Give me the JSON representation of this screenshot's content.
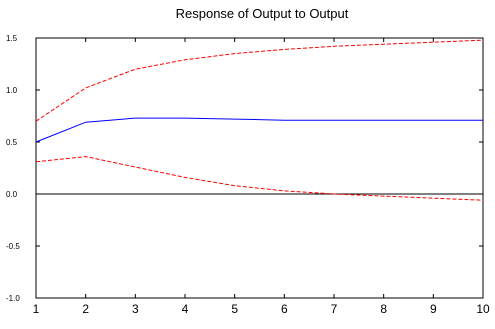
{
  "chart_data": {
    "type": "line",
    "title": "Response of Output to Output",
    "xlabel": "",
    "ylabel": "",
    "x": [
      1,
      2,
      3,
      4,
      5,
      6,
      7,
      8,
      9,
      10
    ],
    "xlim": [
      1,
      10
    ],
    "ylim": [
      -1.0,
      1.5
    ],
    "yticks": [
      -1.0,
      -0.5,
      0.0,
      0.5,
      1.0,
      1.5
    ],
    "ytick_labels": [
      "-1.0",
      "-0.5",
      "0.0",
      "0.5",
      "1.0",
      "1.5"
    ],
    "xtick_labels": [
      "1",
      "2",
      "3",
      "4",
      "5",
      "6",
      "7",
      "8",
      "9",
      "10"
    ],
    "grid": false,
    "legend": "none",
    "zero_line": {
      "value": 0.0,
      "color": "#000000"
    },
    "series": [
      {
        "values": [
          0.5,
          0.69,
          0.73,
          0.73,
          0.72,
          0.71,
          0.71,
          0.71,
          0.71,
          0.71
        ],
        "color": "#0000ff",
        "style": "solid"
      },
      {
        "values": [
          0.7,
          1.02,
          1.2,
          1.29,
          1.35,
          1.39,
          1.42,
          1.44,
          1.46,
          1.48
        ],
        "color": "#ff0000",
        "style": "dashed"
      },
      {
        "values": [
          0.31,
          0.36,
          0.26,
          0.16,
          0.08,
          0.03,
          0.0,
          -0.02,
          -0.04,
          -0.06
        ],
        "color": "#ff0000",
        "style": "dashed"
      }
    ]
  }
}
